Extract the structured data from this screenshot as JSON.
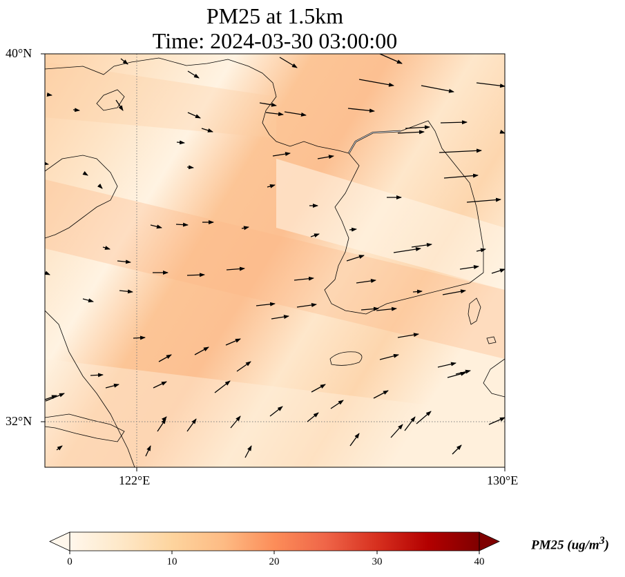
{
  "title": {
    "line1": "PM25 at 1.5km",
    "line2": "Time: 2024-03-30 03:00:00"
  },
  "map": {
    "lat_range": [
      31,
      40
    ],
    "lon_range": [
      120,
      130
    ],
    "lat_ticks": [
      {
        "value": 40,
        "label": "40°N"
      },
      {
        "value": 32,
        "label": "32°N"
      }
    ],
    "lon_ticks": [
      {
        "value": 122,
        "label": "122°E"
      },
      {
        "value": 130,
        "label": "130°E"
      }
    ],
    "gridlines": "dotted at 122°E and 32°N",
    "field": "PM25",
    "field_colormap": "OrRd",
    "field_band_description": "diagonal bands of higher PM25 (~8-14 ug/m3) over Yellow Sea and southern Korea; lower values (~2-5) over central Korea and northeast",
    "wind_vectors": "black arrows, predominantly westerly/southwesterly"
  },
  "colorbar": {
    "label": "PM25 (ug/m",
    "label_sup": "3",
    "label_end": ")",
    "min": 0,
    "max": 40,
    "ticks": [
      "0",
      "10",
      "20",
      "30",
      "40"
    ],
    "extend": "both",
    "colors": [
      "#fff7ec",
      "#fee8c8",
      "#fdd49e",
      "#fdbb84",
      "#fc8d59",
      "#ef6548",
      "#d7301f",
      "#b30000",
      "#7f0000"
    ]
  },
  "colors": {
    "coastline": "#000000",
    "gridline": "#808080",
    "arrow": "#000000"
  }
}
